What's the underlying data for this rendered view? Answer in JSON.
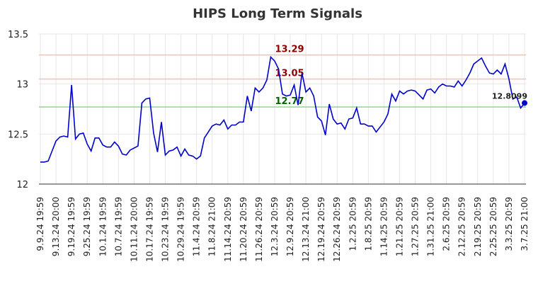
{
  "chart_data": {
    "type": "line",
    "title": "HIPS Long Term Signals",
    "categories": [
      "9.9.24 19:59",
      null,
      null,
      null,
      "9.13.24 20:00",
      null,
      null,
      null,
      "9.19.24 19:59",
      null,
      null,
      null,
      "9.25.24 19:59",
      null,
      null,
      null,
      "10.1.24 19:59",
      null,
      null,
      null,
      "10.7.24 19:59",
      null,
      null,
      null,
      "10.11.24 20:00",
      null,
      null,
      null,
      "10.17.24 19:59",
      null,
      null,
      null,
      "10.23.24 19:59",
      null,
      null,
      null,
      "10.29.24 19:59",
      null,
      null,
      null,
      "11.4.24 20:59",
      null,
      null,
      null,
      "11.8.24 21:00",
      null,
      null,
      null,
      "11.14.24 20:59",
      null,
      null,
      null,
      "11.20.24 20:59",
      null,
      null,
      null,
      "11.26.24 20:59",
      null,
      null,
      null,
      "12.3.24 20:59",
      null,
      null,
      null,
      "12.9.24 20:59",
      null,
      null,
      null,
      "12.13.24 21:00",
      null,
      null,
      null,
      "12.19.24 20:59",
      null,
      null,
      null,
      "12.26.24 20:59",
      null,
      null,
      null,
      "1.2.25 20:59",
      null,
      null,
      null,
      "1.8.25 20:59",
      null,
      null,
      null,
      "1.14.25 20:59",
      null,
      null,
      null,
      "1.21.25 20:59",
      null,
      null,
      null,
      "1.27.25 20:59",
      null,
      null,
      null,
      "1.31.25 21:00",
      null,
      null,
      null,
      "2.6.25 20:59",
      null,
      null,
      null,
      "2.12.25 20:59",
      null,
      null,
      null,
      "2.19.25 20:59",
      null,
      null,
      null,
      "2.25.25 20:59",
      null,
      null,
      null,
      "3.3.25 20:59",
      null,
      null,
      null,
      "3.7.25 21:00"
    ],
    "series": [
      {
        "color": "#0000cc",
        "values": [
          12.22,
          12.22,
          12.23,
          12.33,
          12.43,
          12.47,
          12.48,
          12.47,
          12.99,
          12.45,
          12.5,
          12.51,
          12.4,
          12.33,
          12.46,
          12.46,
          12.39,
          12.37,
          12.37,
          12.42,
          12.38,
          12.3,
          12.29,
          12.34,
          12.36,
          12.38,
          12.81,
          12.85,
          12.86,
          12.51,
          12.32,
          12.62,
          12.29,
          12.33,
          12.34,
          12.37,
          12.28,
          12.35,
          12.29,
          12.28,
          12.25,
          12.28,
          12.46,
          12.52,
          12.58,
          12.6,
          12.59,
          12.64,
          12.55,
          12.59,
          12.59,
          12.62,
          12.62,
          12.88,
          12.73,
          12.96,
          12.92,
          12.96,
          13.04,
          13.27,
          13.23,
          13.15,
          12.9,
          12.88,
          12.89,
          12.99,
          12.79,
          13.11,
          12.92,
          12.96,
          12.88,
          12.67,
          12.63,
          12.49,
          12.8,
          12.65,
          12.6,
          12.61,
          12.55,
          12.65,
          12.66,
          12.76,
          12.6,
          12.6,
          12.58,
          12.58,
          12.52,
          12.57,
          12.62,
          12.7,
          12.9,
          12.83,
          12.93,
          12.9,
          12.93,
          12.94,
          12.93,
          12.89,
          12.85,
          12.94,
          12.95,
          12.91,
          12.97,
          13.0,
          12.98,
          12.98,
          12.97,
          13.03,
          12.98,
          13.04,
          13.11,
          13.2,
          13.23,
          13.26,
          13.18,
          13.11,
          13.1,
          13.14,
          13.1,
          13.2,
          13.05,
          12.85,
          12.87,
          12.76,
          12.8099
        ]
      }
    ],
    "reference_lines": [
      {
        "value": 13.29,
        "color": "#ffbbbb",
        "label_color": "#8b0000"
      },
      {
        "value": 13.05,
        "color": "#ffbbbb",
        "label_color": "#8b0000"
      },
      {
        "value": 12.77,
        "color": "#88dd88",
        "label_color": "#006400"
      }
    ],
    "ylim": [
      12,
      13.5
    ],
    "yticks": [
      12,
      12.5,
      13,
      13.5
    ],
    "grid": true
  }
}
